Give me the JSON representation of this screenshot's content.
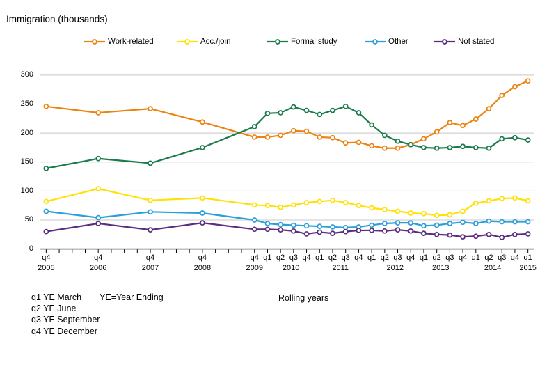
{
  "title": "Immigration (thousands)",
  "x_axis_caption": "Rolling years",
  "footnotes": {
    "line1a": "q1 YE March",
    "line1b": "YE=Year Ending",
    "line2": "q2 YE June",
    "line3": "q3 YE September",
    "line4": "q4 YE December"
  },
  "colors": {
    "background": "#FFFFFF",
    "gridline": "#C8C8C8",
    "axis": "#000000",
    "text": "#000000"
  },
  "chart_data": {
    "type": "line",
    "title": "Immigration (thousands)",
    "ylabel": "Immigration (thousands)",
    "xlabel": "Rolling years",
    "ylim": [
      0,
      300
    ],
    "ytick_interval": 50,
    "grid": "horizontal",
    "legend_position": "top",
    "x_note": "x scale is linear in time (quarters since q4 2005); points are annual q4 2005-2009, then quarterly to q1 2015; q = quarter of rolling year ending",
    "categories": [
      "q4 2005",
      "q4 2006",
      "q4 2007",
      "q4 2008",
      "q4 2009",
      "q1 2010",
      "q2 2010",
      "q3 2010",
      "q4 2010",
      "q1 2011",
      "q2 2011",
      "q3 2011",
      "q4 2011",
      "q1 2012",
      "q2 2012",
      "q3 2012",
      "q4 2012",
      "q1 2013",
      "q2 2013",
      "q3 2013",
      "q4 2013",
      "q1 2014",
      "q2 2014",
      "q3 2014",
      "q4 2014",
      "q1 2015"
    ],
    "x_indices": [
      0,
      4,
      8,
      12,
      16,
      17,
      18,
      19,
      20,
      21,
      22,
      23,
      24,
      25,
      26,
      27,
      28,
      29,
      30,
      31,
      32,
      33,
      34,
      35,
      36,
      37
    ],
    "x_tick_total": 38,
    "year_labels": [
      {
        "label": "2005",
        "i": 0
      },
      {
        "label": "2006",
        "i": 4
      },
      {
        "label": "2007",
        "i": 8
      },
      {
        "label": "2008",
        "i": 12
      },
      {
        "label": "2009",
        "i": 16
      },
      {
        "label": "2010",
        "i": 18.8
      },
      {
        "label": "2011",
        "i": 22.6
      },
      {
        "label": "2012",
        "i": 26.8
      },
      {
        "label": "2013",
        "i": 30.3
      },
      {
        "label": "2014",
        "i": 34.3
      },
      {
        "label": "2015",
        "i": 37
      }
    ],
    "series": [
      {
        "name": "Work-related",
        "color": "#EC830F",
        "values": [
          246,
          235,
          242,
          219,
          193,
          193,
          196,
          204,
          203,
          193,
          192,
          183,
          184,
          178,
          174,
          174,
          180,
          190,
          202,
          218,
          213,
          224,
          242,
          265,
          280,
          290
        ]
      },
      {
        "name": "Acc./join",
        "color": "#FFE105",
        "values": [
          82,
          104,
          84,
          88,
          76,
          75,
          72,
          76,
          80,
          82,
          84,
          80,
          75,
          71,
          68,
          65,
          62,
          61,
          58,
          59,
          65,
          79,
          83,
          87,
          88,
          83
        ]
      },
      {
        "name": "Formal study",
        "color": "#1B7B4B",
        "values": [
          139,
          156,
          148,
          175,
          211,
          234,
          235,
          245,
          239,
          232,
          239,
          246,
          235,
          214,
          196,
          186,
          180,
          175,
          174,
          175,
          177,
          175,
          174,
          190,
          192,
          188
        ]
      },
      {
        "name": "Other",
        "color": "#2AA0D8",
        "values": [
          65,
          54,
          64,
          62,
          50,
          44,
          42,
          41,
          40,
          39,
          38,
          37,
          38,
          41,
          44,
          45,
          45,
          40,
          41,
          44,
          46,
          44,
          48,
          47,
          47,
          47
        ]
      },
      {
        "name": "Not stated",
        "color": "#5B2D7E",
        "values": [
          30,
          44,
          33,
          45,
          34,
          34,
          33,
          31,
          26,
          29,
          27,
          30,
          32,
          32,
          31,
          33,
          31,
          27,
          25,
          24,
          21,
          22,
          25,
          20,
          25,
          26
        ]
      }
    ]
  }
}
